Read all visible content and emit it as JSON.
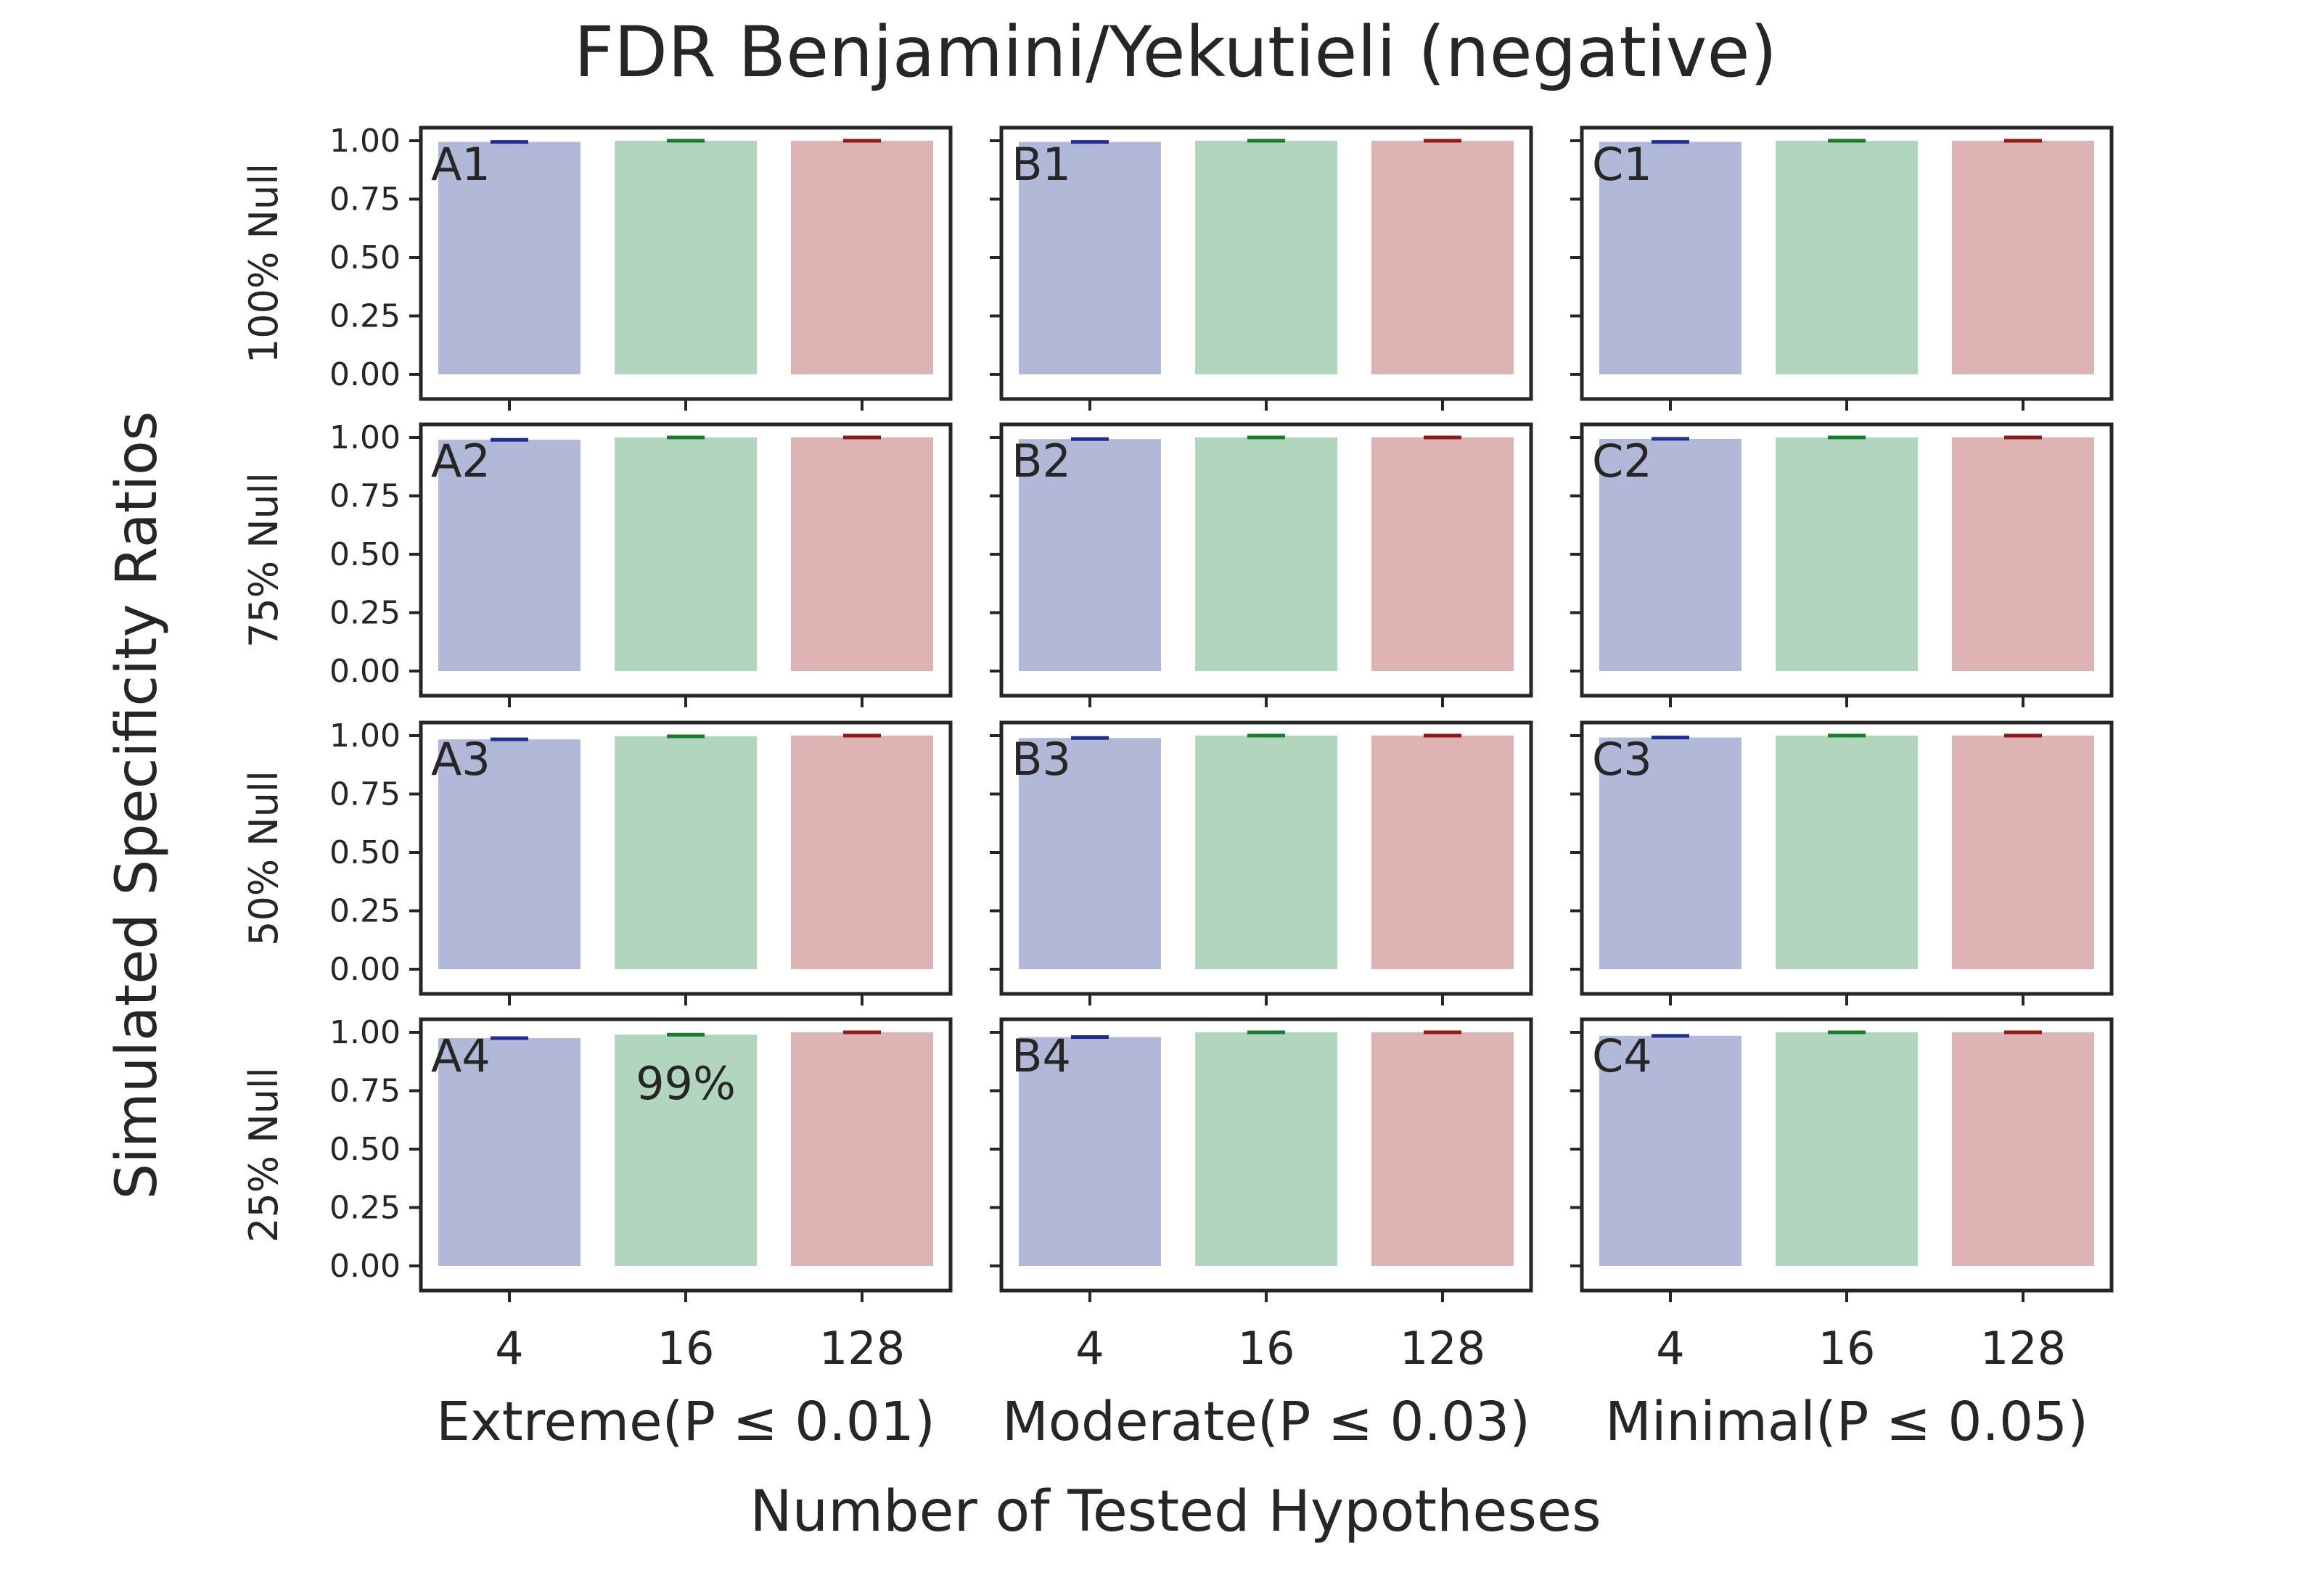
{
  "title": "FDR Benjamini/Yekutieli (negative)",
  "xlabel": "Number of Tested Hypotheses",
  "ylabel": "Simulated Specificity Ratios",
  "colors": {
    "bar": [
      "#b2b9d8",
      "#b2d6bd",
      "#ddb3b3"
    ],
    "errbar": [
      "#1f2f8f",
      "#1a7a2e",
      "#8b1a1a"
    ],
    "frame": "#262626",
    "text": "#262626"
  },
  "chart_data": {
    "type": "bar",
    "layout": "grid 4 rows x 3 columns, shared y axis",
    "categories": [
      "4",
      "16",
      "128"
    ],
    "yticks": [
      "0.00",
      "0.25",
      "0.50",
      "0.75",
      "1.00"
    ],
    "ylim": [
      0,
      1.05
    ],
    "grid": false,
    "columns": [
      "Extreme(P ≤ 0.01)",
      "Moderate(P ≤ 0.03)",
      "Minimal(P ≤ 0.05)"
    ],
    "rows": [
      "100% Null",
      "75% Null",
      "50% Null",
      "25% Null"
    ],
    "panels": [
      {
        "label": "A1",
        "row": 0,
        "col": 0,
        "values": [
          0.995,
          1.0,
          1.0
        ],
        "annotation": ""
      },
      {
        "label": "B1",
        "row": 0,
        "col": 1,
        "values": [
          0.995,
          1.0,
          1.0
        ],
        "annotation": ""
      },
      {
        "label": "C1",
        "row": 0,
        "col": 2,
        "values": [
          0.995,
          1.0,
          1.0
        ],
        "annotation": ""
      },
      {
        "label": "A2",
        "row": 1,
        "col": 0,
        "values": [
          0.99,
          1.0,
          1.0
        ],
        "annotation": ""
      },
      {
        "label": "B2",
        "row": 1,
        "col": 1,
        "values": [
          0.993,
          1.0,
          1.0
        ],
        "annotation": ""
      },
      {
        "label": "C2",
        "row": 1,
        "col": 2,
        "values": [
          0.994,
          1.0,
          1.0
        ],
        "annotation": ""
      },
      {
        "label": "A3",
        "row": 2,
        "col": 0,
        "values": [
          0.984,
          0.997,
          1.0
        ],
        "annotation": ""
      },
      {
        "label": "B3",
        "row": 2,
        "col": 1,
        "values": [
          0.99,
          1.0,
          1.0
        ],
        "annotation": ""
      },
      {
        "label": "C3",
        "row": 2,
        "col": 2,
        "values": [
          0.992,
          1.0,
          1.0
        ],
        "annotation": ""
      },
      {
        "label": "A4",
        "row": 3,
        "col": 0,
        "values": [
          0.975,
          0.99,
          1.0
        ],
        "annotation": "99%"
      },
      {
        "label": "B4",
        "row": 3,
        "col": 1,
        "values": [
          0.98,
          1.0,
          1.0
        ],
        "annotation": ""
      },
      {
        "label": "C4",
        "row": 3,
        "col": 2,
        "values": [
          0.985,
          1.0,
          1.0
        ],
        "annotation": ""
      }
    ]
  }
}
